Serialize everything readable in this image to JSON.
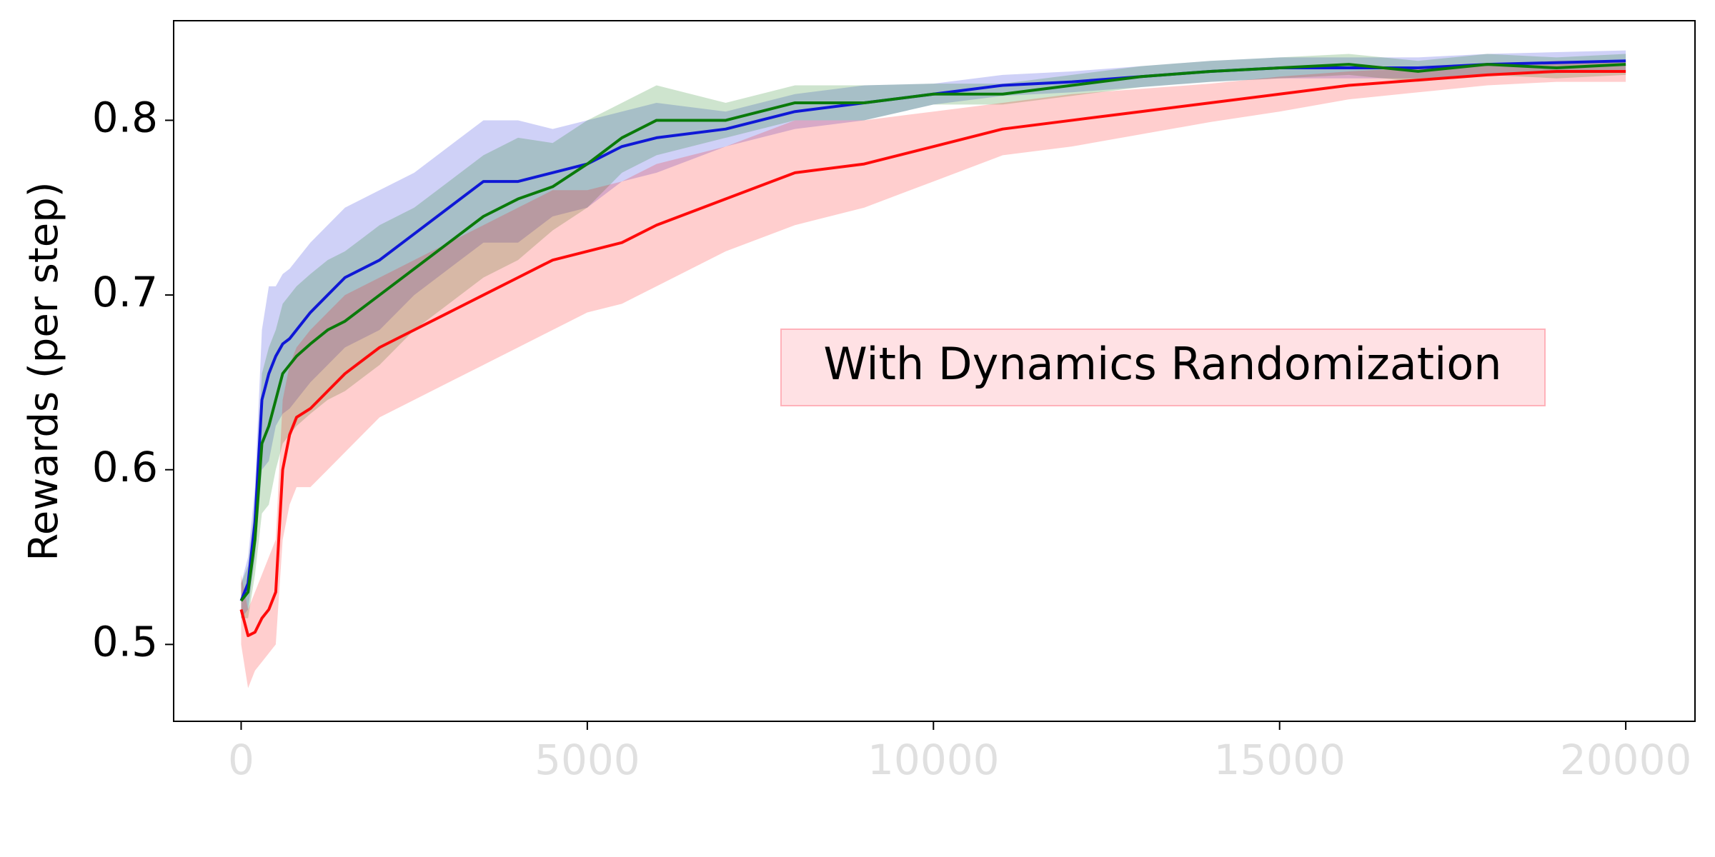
{
  "chart_data": {
    "type": "line",
    "y_label": "Rewards (per step)",
    "annotation": "With Dynamics Randomization",
    "x": [
      0,
      100,
      200,
      300,
      400,
      500,
      600,
      700,
      800,
      1000,
      1250,
      1500,
      2000,
      2500,
      3000,
      3500,
      4000,
      4500,
      5000,
      5500,
      6000,
      7000,
      8000,
      9000,
      10000,
      11000,
      12000,
      13000,
      14000,
      15000,
      16000,
      17000,
      18000,
      19000,
      20000
    ],
    "xlim": [
      -975,
      21000
    ],
    "ylim": [
      0.456,
      0.857
    ],
    "xticks": [
      0,
      5000,
      10000,
      15000,
      20000
    ],
    "yticks": [
      0.5,
      0.6,
      0.7,
      0.8
    ],
    "xtick_color": "#e0e0e0",
    "annotation_fill": "#ffe1e4",
    "annotation_edge": "#ffb2ba",
    "series": [
      {
        "color": "#0f18d6",
        "values": [
          0.525,
          0.535,
          0.57,
          0.64,
          0.655,
          0.665,
          0.672,
          0.675,
          0.68,
          0.69,
          0.7,
          0.71,
          0.72,
          0.735,
          0.75,
          0.765,
          0.765,
          0.77,
          0.775,
          0.785,
          0.79,
          0.795,
          0.805,
          0.81,
          0.815,
          0.82,
          0.822,
          0.825,
          0.828,
          0.83,
          0.83,
          0.83,
          0.832,
          0.833,
          0.834
        ],
        "upper": [
          0.535,
          0.55,
          0.59,
          0.68,
          0.705,
          0.705,
          0.712,
          0.715,
          0.72,
          0.73,
          0.74,
          0.75,
          0.76,
          0.77,
          0.785,
          0.8,
          0.8,
          0.795,
          0.8,
          0.805,
          0.81,
          0.805,
          0.815,
          0.82,
          0.821,
          0.826,
          0.828,
          0.831,
          0.834,
          0.836,
          0.836,
          0.836,
          0.838,
          0.839,
          0.84
        ],
        "lower": [
          0.515,
          0.52,
          0.55,
          0.6,
          0.605,
          0.625,
          0.632,
          0.635,
          0.64,
          0.65,
          0.66,
          0.67,
          0.68,
          0.7,
          0.715,
          0.73,
          0.73,
          0.745,
          0.75,
          0.765,
          0.77,
          0.785,
          0.795,
          0.8,
          0.809,
          0.814,
          0.816,
          0.819,
          0.822,
          0.824,
          0.824,
          0.824,
          0.826,
          0.827,
          0.828
        ]
      },
      {
        "color": "#0a7a0a",
        "values": [
          0.525,
          0.53,
          0.56,
          0.615,
          0.625,
          0.64,
          0.655,
          0.66,
          0.665,
          0.672,
          0.68,
          0.685,
          0.7,
          0.715,
          0.73,
          0.745,
          0.755,
          0.762,
          0.775,
          0.79,
          0.8,
          0.8,
          0.81,
          0.81,
          0.815,
          0.815,
          0.82,
          0.825,
          0.828,
          0.83,
          0.832,
          0.828,
          0.832,
          0.83,
          0.832
        ],
        "upper": [
          0.535,
          0.545,
          0.58,
          0.655,
          0.67,
          0.68,
          0.695,
          0.7,
          0.705,
          0.712,
          0.72,
          0.725,
          0.74,
          0.75,
          0.765,
          0.78,
          0.79,
          0.787,
          0.8,
          0.81,
          0.82,
          0.81,
          0.82,
          0.82,
          0.821,
          0.821,
          0.826,
          0.831,
          0.834,
          0.836,
          0.838,
          0.834,
          0.838,
          0.836,
          0.838
        ],
        "lower": [
          0.515,
          0.515,
          0.54,
          0.575,
          0.58,
          0.6,
          0.615,
          0.62,
          0.625,
          0.632,
          0.64,
          0.645,
          0.66,
          0.68,
          0.695,
          0.71,
          0.72,
          0.737,
          0.75,
          0.77,
          0.78,
          0.79,
          0.8,
          0.8,
          0.809,
          0.809,
          0.814,
          0.819,
          0.822,
          0.824,
          0.826,
          0.822,
          0.826,
          0.824,
          0.826
        ]
      },
      {
        "color": "#ff0a0a",
        "values": [
          0.52,
          0.505,
          0.507,
          0.515,
          0.52,
          0.53,
          0.6,
          0.62,
          0.63,
          0.635,
          0.645,
          0.655,
          0.67,
          0.68,
          0.69,
          0.7,
          0.71,
          0.72,
          0.725,
          0.73,
          0.74,
          0.755,
          0.77,
          0.775,
          0.785,
          0.795,
          0.8,
          0.805,
          0.81,
          0.815,
          0.82,
          0.823,
          0.826,
          0.828,
          0.828
        ],
        "upper": [
          0.54,
          0.52,
          0.53,
          0.54,
          0.55,
          0.56,
          0.64,
          0.66,
          0.67,
          0.68,
          0.69,
          0.7,
          0.71,
          0.72,
          0.73,
          0.74,
          0.75,
          0.76,
          0.76,
          0.765,
          0.775,
          0.785,
          0.8,
          0.8,
          0.805,
          0.81,
          0.815,
          0.818,
          0.821,
          0.825,
          0.828,
          0.83,
          0.832,
          0.834,
          0.834
        ],
        "lower": [
          0.5,
          0.475,
          0.485,
          0.49,
          0.495,
          0.5,
          0.56,
          0.58,
          0.59,
          0.59,
          0.6,
          0.61,
          0.63,
          0.64,
          0.65,
          0.66,
          0.67,
          0.68,
          0.69,
          0.695,
          0.705,
          0.725,
          0.74,
          0.75,
          0.765,
          0.78,
          0.785,
          0.792,
          0.799,
          0.805,
          0.812,
          0.816,
          0.82,
          0.822,
          0.822
        ]
      }
    ]
  }
}
